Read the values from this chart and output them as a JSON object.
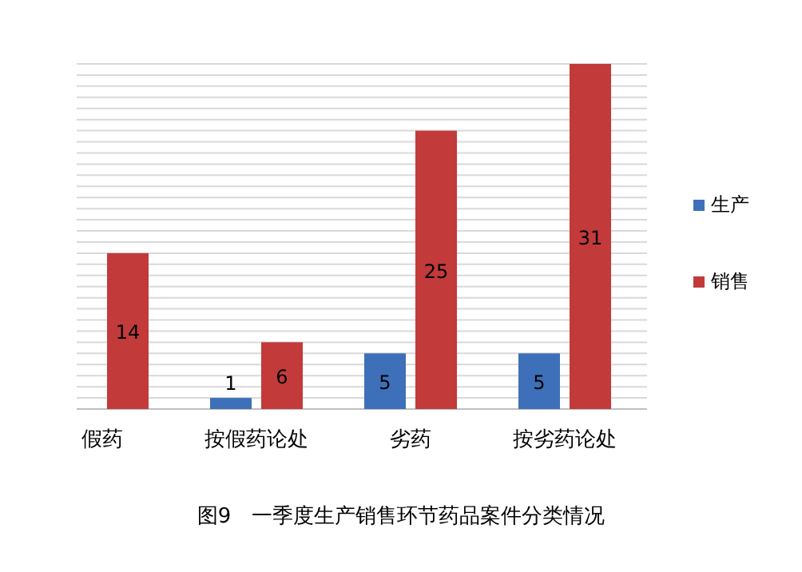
{
  "chart_data": {
    "type": "bar",
    "title": "图9　一季度生产销售环节药品案件分类情况",
    "categories": [
      "假药",
      "按假药论处",
      "劣药",
      "按劣药论处"
    ],
    "series": [
      {
        "name": "生产",
        "color": "#3d70b8",
        "values": [
          null,
          1,
          5,
          5
        ]
      },
      {
        "name": "销售",
        "color": "#c23a3a",
        "values": [
          14,
          6,
          25,
          31
        ]
      }
    ],
    "data_labels": true,
    "grid": "y",
    "legend": "right"
  }
}
